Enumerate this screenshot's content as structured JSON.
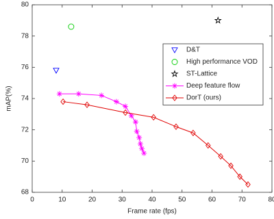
{
  "chart_data": {
    "type": "line",
    "x_label": "Frame rate (fps)",
    "y_label": "mAP(%)",
    "xlim": [
      0,
      80
    ],
    "xticks": [
      0,
      10,
      20,
      30,
      40,
      50,
      60,
      70,
      80
    ],
    "ylim": [
      68,
      80
    ],
    "yticks": [
      68,
      70,
      72,
      74,
      76,
      78,
      80
    ],
    "grid": false,
    "legend": "upper right",
    "series": [
      {
        "name": "D&T",
        "color": "#0000ff",
        "marker": "triangle-down",
        "line": false,
        "x": [
          8
        ],
        "values": [
          75.8
        ]
      },
      {
        "name": "High performance VOD",
        "color": "#00cc00",
        "marker": "circle",
        "line": false,
        "x": [
          13
        ],
        "values": [
          78.6
        ]
      },
      {
        "name": "ST-Lattice",
        "color": "#000000",
        "marker": "pentagram",
        "line": false,
        "x": [
          62
        ],
        "values": [
          79.0
        ]
      },
      {
        "name": "Deep feature flow",
        "color": "#ff00ff",
        "marker": "asterisk",
        "line": true,
        "x": [
          9.1,
          15.5,
          23.1,
          28.1,
          31.1,
          33.1,
          34.5,
          34.9,
          35.7,
          36.1,
          36.6,
          37.3
        ],
        "values": [
          74.3,
          74.3,
          74.2,
          73.8,
          73.5,
          72.9,
          72.5,
          71.9,
          71.5,
          71.1,
          70.8,
          70.5
        ]
      },
      {
        "name": "DorT (ours)",
        "color": "#e00000",
        "marker": "diamond",
        "line": true,
        "x": [
          10.3,
          18.3,
          31.1,
          40.5,
          48.0,
          53.7,
          58.7,
          62.9,
          66.3,
          69.3,
          72.0
        ],
        "values": [
          73.8,
          73.6,
          73.1,
          72.8,
          72.2,
          71.8,
          71.0,
          70.3,
          69.7,
          69.0,
          68.5
        ]
      }
    ]
  }
}
